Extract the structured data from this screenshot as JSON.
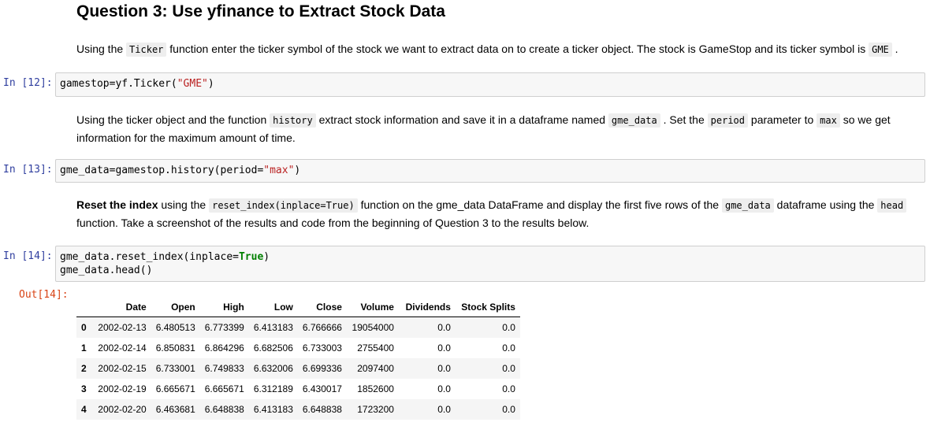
{
  "heading": "Question 3: Use yfinance to Extract Stock Data",
  "md1": {
    "t1": "Using the ",
    "c1": "Ticker",
    "t2": " function enter the ticker symbol of the stock we want to extract data on to create a ticker object. The stock is GameStop and its ticker symbol is ",
    "c2": "GME",
    "t3": " ."
  },
  "cell12": {
    "prompt": "In [12]:",
    "pre": "gamestop=yf.Ticker(",
    "str": "\"GME\"",
    "post": ")"
  },
  "md2": {
    "t1": "Using the ticker object and the function ",
    "c1": "history",
    "t2": " extract stock information and save it in a dataframe named ",
    "c2": "gme_data",
    "t3": " . Set the ",
    "c3": "period",
    "t4": " parameter to ",
    "c4": "max",
    "t5": " so we get information for the maximum amount of time."
  },
  "cell13": {
    "prompt": "In [13]:",
    "pre": "gme_data=gamestop.history(period=",
    "str": "\"max\"",
    "post": ")"
  },
  "md3": {
    "bold": "Reset the index",
    "t1": " using the ",
    "c1": "reset_index(inplace=True)",
    "t2": " function on the gme_data DataFrame and display the first five rows of the ",
    "c2": "gme_data",
    "t3": " dataframe using the ",
    "c3": "head",
    "t4": " function. Take a screenshot of the results and code from the beginning of Question 3 to the results below."
  },
  "cell14": {
    "prompt": "In [14]:",
    "line1_pre": "gme_data.reset_index(inplace=",
    "line1_kw": "True",
    "line1_post": ")",
    "line2": "gme_data.head()",
    "out_prompt": "Out[14]:"
  },
  "table": {
    "columns": [
      "",
      "Date",
      "Open",
      "High",
      "Low",
      "Close",
      "Volume",
      "Dividends",
      "Stock Splits"
    ],
    "rows": [
      [
        "0",
        "2002-02-13",
        "6.480513",
        "6.773399",
        "6.413183",
        "6.766666",
        "19054000",
        "0.0",
        "0.0"
      ],
      [
        "1",
        "2002-02-14",
        "6.850831",
        "6.864296",
        "6.682506",
        "6.733003",
        "2755400",
        "0.0",
        "0.0"
      ],
      [
        "2",
        "2002-02-15",
        "6.733001",
        "6.749833",
        "6.632006",
        "6.699336",
        "2097400",
        "0.0",
        "0.0"
      ],
      [
        "3",
        "2002-02-19",
        "6.665671",
        "6.665671",
        "6.312189",
        "6.430017",
        "1852600",
        "0.0",
        "0.0"
      ],
      [
        "4",
        "2002-02-20",
        "6.463681",
        "6.648838",
        "6.413183",
        "6.648838",
        "1723200",
        "0.0",
        "0.0"
      ]
    ]
  }
}
